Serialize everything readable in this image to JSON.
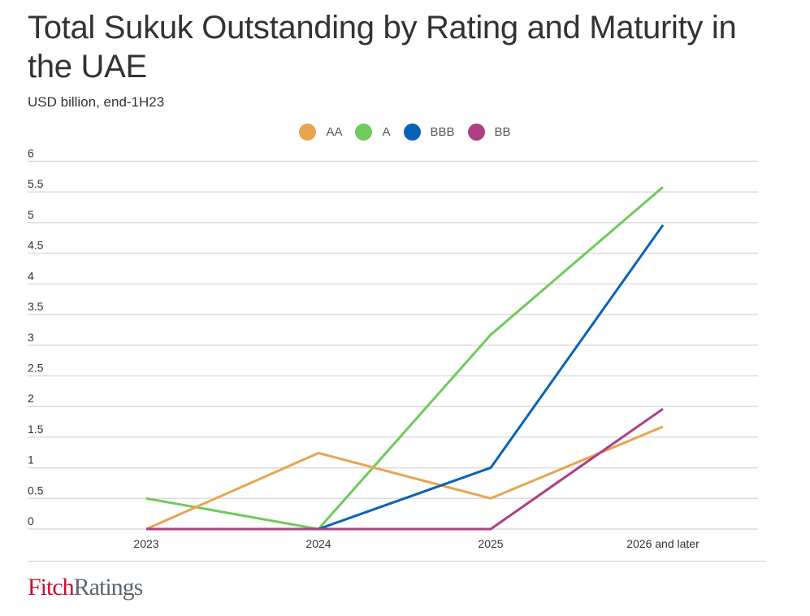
{
  "header": {
    "title": "Total Sukuk Outstanding by Rating and Maturity in the UAE",
    "subtitle": "USD billion, end-1H23"
  },
  "footer": {
    "logo_part1": "Fitch",
    "logo_part2": "Ratings"
  },
  "chart_data": {
    "type": "line",
    "title": "Total Sukuk Outstanding by Rating and Maturity in the UAE",
    "subtitle": "USD billion, end-1H23",
    "xlabel": "",
    "ylabel": "",
    "categories": [
      "2023",
      "2024",
      "2025",
      "2026 and later"
    ],
    "ylim": [
      0,
      6
    ],
    "yticks": [
      0,
      0.5,
      1,
      1.5,
      2,
      2.5,
      3,
      3.5,
      4,
      4.5,
      5,
      5.5,
      6
    ],
    "ytick_labels": [
      "0",
      "0.5",
      "1",
      "1.5",
      "2",
      "2.5",
      "3",
      "3.5",
      "4",
      "4.5",
      "5",
      "5.5",
      "6"
    ],
    "grid": true,
    "legend_position": "top-center",
    "series": [
      {
        "name": "AA",
        "color": "#e8a44f",
        "values": [
          0,
          1.24,
          0.5,
          1.67
        ]
      },
      {
        "name": "A",
        "color": "#6fcb5c",
        "values": [
          0.5,
          0,
          3.17,
          5.58
        ]
      },
      {
        "name": "BBB",
        "color": "#0b62b5",
        "values": [
          0,
          0,
          1.0,
          4.96
        ]
      },
      {
        "name": "BB",
        "color": "#ad3f85",
        "values": [
          0,
          0,
          0,
          1.96
        ]
      }
    ]
  }
}
